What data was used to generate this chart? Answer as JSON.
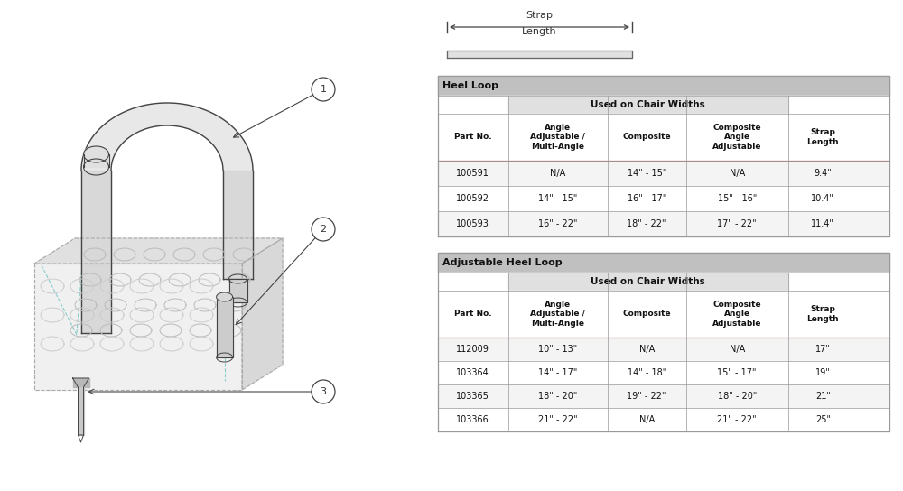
{
  "strap_label_line1": "Strap",
  "strap_label_line2": "Length",
  "table1_title": "Heel Loop",
  "table1_sub": "Used on Chair Widths",
  "table1_col_headers": [
    "Part No.",
    "Angle\nAdjustable /\nMulti-Angle",
    "Composite",
    "Composite\nAngle\nAdjustable",
    "Strap\nLength"
  ],
  "table1_rows": [
    [
      "100591",
      "N/A",
      "14\" - 15\"",
      "N/A",
      "9.4\""
    ],
    [
      "100592",
      "14\" - 15\"",
      "16\" - 17\"",
      "15\" - 16\"",
      "10.4\""
    ],
    [
      "100593",
      "16\" - 22\"",
      "18\" - 22\"",
      "17\" - 22\"",
      "11.4\""
    ]
  ],
  "table2_title": "Adjustable Heel Loop",
  "table2_sub": "Used on Chair Widths",
  "table2_col_headers": [
    "Part No.",
    "Angle\nAdjustable /\nMulti-Angle",
    "Composite",
    "Composite\nAngle\nAdjustable",
    "Strap\nLength"
  ],
  "table2_rows": [
    [
      "112009",
      "10\" - 13\"",
      "N/A",
      "N/A",
      "17\""
    ],
    [
      "103364",
      "14\" - 17\"",
      "14\" - 18\"",
      "15\" - 17\"",
      "19\""
    ],
    [
      "103365",
      "18\" - 20\"",
      "19\" - 22\"",
      "18\" - 20\"",
      "21\""
    ],
    [
      "103366",
      "21\" - 22\"",
      "N/A",
      "21\" - 22\"",
      "25\""
    ]
  ],
  "bg_color": "#ffffff",
  "table_title_bg": "#c0c0c0",
  "table_sub_bg": "#e0e0e0",
  "table_row_alt_bg": "#f0f0f0",
  "table_border": "#999999",
  "red_line_color": "#c87878",
  "line_color": "#444444",
  "light_blue": "#88cccc",
  "part_line_color": "#555555",
  "footplate_color": "#dddddd",
  "callout_bg": "#ffffff"
}
